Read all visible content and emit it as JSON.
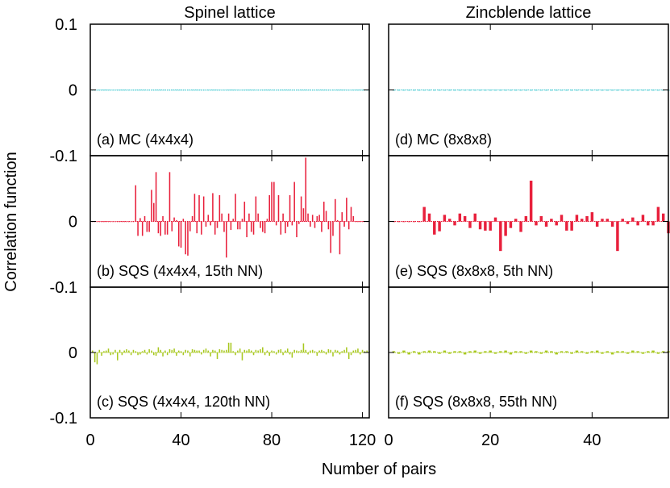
{
  "figure": {
    "ylabel": "Correlation function",
    "xlabel": "Number of pairs"
  },
  "colors": {
    "mc": "#40c8d0",
    "sqs_mid": "#e8203c",
    "sqs_low": "#a8c820",
    "frame": "#000000"
  },
  "columns": [
    {
      "title": "Spinel lattice",
      "xlim": [
        0,
        123
      ],
      "xticks": [
        0,
        40,
        80,
        120
      ]
    },
    {
      "title": "Zincblende lattice",
      "xlim": [
        0,
        55
      ],
      "xticks": [
        0,
        20,
        40
      ]
    }
  ],
  "chart_data": [
    {
      "type": "bar",
      "title": "Spinel lattice",
      "panel": "(a) MC (4x4x4)",
      "label": "(a) MC (4x4x4)",
      "color": "#40c8d0",
      "xlim": [
        0,
        123
      ],
      "ylim": [
        -0.1,
        0.1
      ],
      "yticks": [
        "0.1",
        "0",
        "-0.1"
      ],
      "xlabel": "Number of pairs",
      "ylabel": "Correlation function",
      "values": [
        0,
        0,
        0,
        0,
        0,
        0,
        0,
        0,
        0,
        0,
        0,
        0,
        0,
        0,
        0,
        0,
        0,
        0,
        0,
        0,
        0,
        0,
        0,
        0,
        0,
        0,
        0,
        0,
        0,
        0,
        0,
        0,
        0,
        0,
        0,
        0,
        0,
        0,
        0,
        0,
        0,
        0,
        0,
        0,
        0,
        0,
        0,
        0,
        0,
        0,
        0,
        0,
        0,
        0,
        0,
        0,
        0,
        0,
        0,
        0,
        0,
        0,
        0,
        0,
        0,
        0,
        0,
        0,
        0,
        0,
        0,
        0,
        0,
        0,
        0,
        0,
        0,
        0,
        0,
        0,
        0,
        0,
        0,
        0,
        0,
        0,
        0,
        0,
        0,
        0,
        0,
        0,
        0,
        0,
        0,
        0,
        0,
        0,
        0,
        0,
        0,
        0,
        0,
        0,
        0,
        0,
        0,
        0,
        0,
        0,
        0,
        0,
        0,
        0,
        0,
        0,
        0,
        0,
        0,
        0,
        0,
        0,
        0
      ]
    },
    {
      "type": "bar",
      "title": "Spinel lattice",
      "panel": "(b) SQS (4x4x4, 15th NN)",
      "label": "(b) SQS (4x4x4, 15th NN)",
      "color": "#e8203c",
      "xlim": [
        0,
        123
      ],
      "ylim": [
        -0.1,
        0.1
      ],
      "yticks": [
        "",
        "0",
        "-0.1"
      ],
      "values": [
        0,
        0,
        0,
        0,
        0,
        0,
        0,
        0,
        0,
        0,
        0,
        0,
        0,
        0,
        0,
        0,
        0,
        0,
        0,
        0.055,
        -0.022,
        0.005,
        -0.022,
        0.008,
        -0.016,
        -0.016,
        0.048,
        0.028,
        0.075,
        -0.018,
        -0.022,
        0.008,
        -0.02,
        -0.02,
        0.075,
        -0.015,
        0.006,
        0.002,
        -0.038,
        -0.04,
        0.004,
        -0.05,
        -0.052,
        -0.015,
        0.008,
        0.042,
        -0.018,
        0.04,
        -0.02,
        0.038,
        -0.008,
        0.01,
        -0.006,
        0.043,
        -0.02,
        -0.01,
        0.04,
        0.012,
        -0.016,
        -0.055,
        0.012,
        -0.013,
        0.004,
        0.042,
        -0.012,
        -0.012,
        0.004,
        0.03,
        -0.024,
        0.012,
        -0.016,
        -0.02,
        0.038,
        0.012,
        -0.01,
        -0.016,
        -0.018,
        0.004,
        0.04,
        0.06,
        0.06,
        -0.006,
        0.04,
        -0.02,
        0.012,
        -0.018,
        -0.008,
        0.04,
        -0.006,
        0.06,
        -0.024,
        -0.004,
        0.038,
        0.02,
        0.097,
        0.012,
        -0.008,
        0.01,
        -0.01,
        0.008,
        0.01,
        -0.016,
        0.03,
        0.016,
        -0.012,
        -0.048,
        -0.022,
        0.034,
        0.002,
        -0.05,
        0.014,
        -0.008,
        0.036,
        -0.012,
        0.022,
        0.008,
        0,
        0,
        0,
        0,
        0,
        0
      ]
    },
    {
      "type": "bar",
      "title": "Spinel lattice",
      "panel": "(c) SQS (4x4x4, 120th NN)",
      "label": "(c) SQS (4x4x4, 120th NN)",
      "color": "#a8c820",
      "xlim": [
        0,
        123
      ],
      "ylim": [
        -0.1,
        0.1
      ],
      "yticks": [
        "",
        "0",
        "-0.1"
      ],
      "values": [
        0.003,
        -0.015,
        -0.018,
        0.004,
        -0.005,
        0.002,
        0.003,
        0.006,
        -0.004,
        -0.003,
        0.004,
        -0.012,
        0.004,
        -0.004,
        0.003,
        0.005,
        0.003,
        -0.004,
        0.004,
        0.002,
        -0.004,
        -0.003,
        0.002,
        0.004,
        -0.003,
        0.005,
        0.003,
        -0.004,
        -0.005,
        0.008,
        0.004,
        -0.006,
        0.003,
        -0.004,
        0.005,
        0.004,
        0.006,
        -0.005,
        0.003,
        0.002,
        -0.004,
        0.004,
        0.003,
        -0.006,
        0.005,
        0.004,
        0.003,
        0.003,
        -0.003,
        0.004,
        0.006,
        0.003,
        -0.006,
        0.004,
        0.003,
        -0.01,
        0.005,
        0.004,
        0.003,
        0.004,
        0.015,
        0.015,
        0.002,
        -0.004,
        0.003,
        0.006,
        -0.012,
        0.004,
        0.003,
        0.005,
        0.003,
        -0.004,
        0.004,
        0.003,
        0.005,
        0.008,
        -0.004,
        0.003,
        -0.005,
        0.003,
        0.002,
        -0.003,
        0.004,
        0.005,
        -0.004,
        0.003,
        0.006,
        -0.003,
        -0.008,
        0.004,
        0.003,
        0.002,
        0.004,
        0.014,
        0.004,
        -0.003,
        0.003,
        0.004,
        0.002,
        -0.005,
        0.003,
        0.004,
        0.002,
        -0.003,
        0.005,
        0.004,
        -0.006,
        0.004,
        0.003,
        -0.003,
        0.002,
        0.004,
        0.008,
        -0.01,
        -0.004,
        0.003,
        0.004,
        0.006,
        -0.003,
        0.004,
        0.002,
        0.003,
        0.002
      ]
    },
    {
      "type": "bar",
      "title": "Zincblende lattice",
      "panel": "(d) MC (8x8x8)",
      "label": "(d) MC (8x8x8)",
      "color": "#40c8d0",
      "xlim": [
        0,
        55
      ],
      "ylim": [
        -0.1,
        0.1
      ],
      "values": [
        0,
        0,
        0,
        0,
        0,
        0,
        0,
        0,
        0,
        0,
        0,
        0,
        0,
        0,
        0,
        0,
        0,
        0,
        0,
        0,
        0,
        0,
        0,
        0,
        0,
        0,
        0,
        0,
        0,
        0,
        0,
        0,
        0,
        0,
        0,
        0,
        0,
        0,
        0,
        0,
        0,
        0,
        0,
        0,
        0,
        0,
        0,
        0,
        0,
        0,
        0,
        0,
        0,
        0,
        0
      ]
    },
    {
      "type": "bar",
      "title": "Zincblende lattice",
      "panel": "(e) SQS (8x8x8, 5th NN)",
      "label": "(e) SQS (8x8x8, 5th NN)",
      "color": "#e8203c",
      "xlim": [
        0,
        55
      ],
      "ylim": [
        -0.1,
        0.1
      ],
      "values": [
        0,
        0,
        0,
        0,
        0,
        0,
        0.022,
        0.012,
        -0.02,
        -0.015,
        0.01,
        0.004,
        -0.006,
        0.012,
        0.008,
        -0.01,
        0.012,
        -0.012,
        -0.014,
        -0.014,
        0.006,
        -0.045,
        -0.022,
        -0.01,
        0.004,
        -0.016,
        0.008,
        0.062,
        -0.006,
        0.008,
        -0.008,
        0.004,
        -0.006,
        0.01,
        -0.014,
        -0.014,
        0.01,
        0.004,
        0.008,
        0.014,
        -0.008,
        0.004,
        0.004,
        -0.008,
        -0.045,
        0.004,
        -0.004,
        0.006,
        -0.006,
        0.01,
        -0.006,
        -0.006,
        0.022,
        0.012,
        -0.018
      ]
    },
    {
      "type": "bar",
      "title": "Zincblende lattice",
      "panel": "(f) SQS (8x8x8, 55th NN)",
      "label": "(f) SQS (8x8x8, 55th NN)",
      "color": "#a8c820",
      "xlim": [
        0,
        55
      ],
      "ylim": [
        -0.1,
        0.1
      ],
      "values": [
        0.002,
        -0.002,
        0.003,
        -0.003,
        0.002,
        -0.003,
        0.002,
        0.003,
        0.002,
        -0.002,
        0.003,
        -0.002,
        0.002,
        0.002,
        -0.003,
        0.002,
        0.003,
        -0.002,
        0.002,
        0.003,
        -0.002,
        0.002,
        0.003,
        -0.003,
        0.002,
        0.002,
        -0.002,
        0.003,
        0.002,
        -0.002,
        0.003,
        0.002,
        -0.003,
        0.002,
        0.002,
        -0.002,
        0.003,
        0.002,
        -0.002,
        0.002,
        0.003,
        -0.002,
        0.002,
        -0.003,
        0.002,
        0.002,
        -0.002,
        0.003,
        0.002,
        -0.002,
        0.002,
        0.003,
        -0.002,
        0.002,
        0.002
      ]
    }
  ]
}
